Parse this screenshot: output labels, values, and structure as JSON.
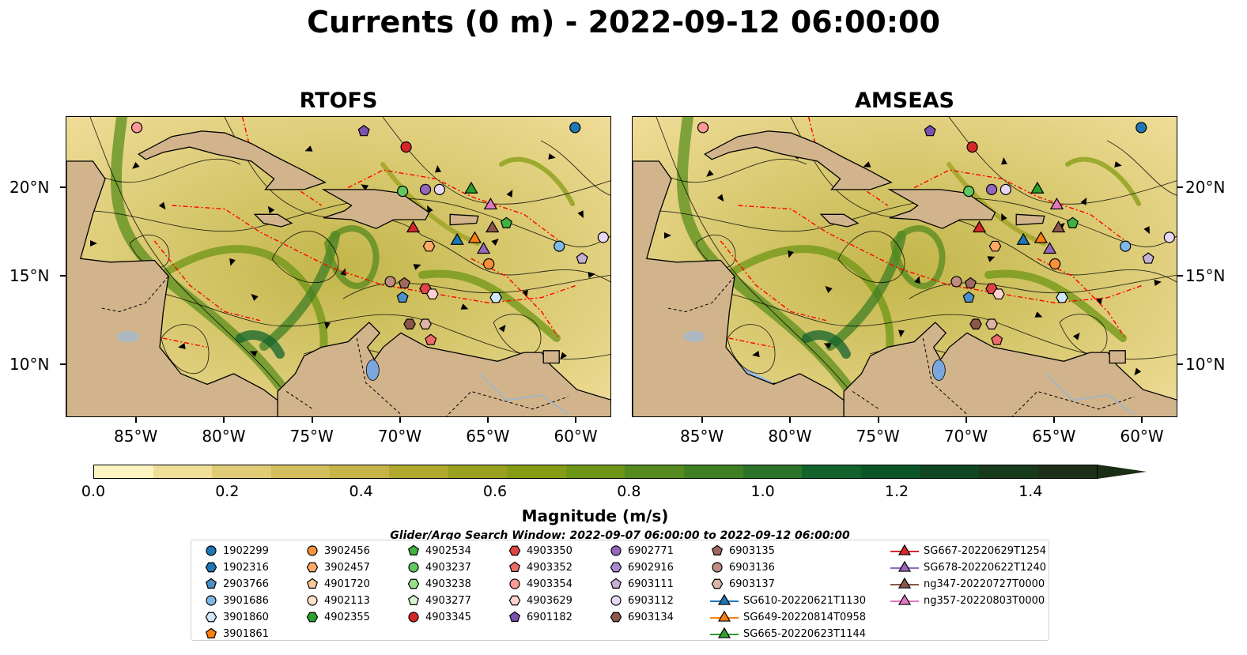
{
  "figure": {
    "title": "Currents (0 m) - 2022-09-12 06:00:00",
    "panels": [
      {
        "title": "RTOFS"
      },
      {
        "title": "AMSEAS"
      }
    ]
  },
  "axes": {
    "lon_ticks": [
      "85°W",
      "80°W",
      "75°W",
      "70°W",
      "65°W",
      "60°W"
    ],
    "lat_ticks": [
      "20°N",
      "15°N",
      "10°N"
    ],
    "lon_range": [
      -89,
      -58
    ],
    "lat_range": [
      7,
      24
    ]
  },
  "colorbar": {
    "label": "Magnitude (m/s)",
    "ticks": [
      "0.0",
      "0.2",
      "0.4",
      "0.6",
      "0.8",
      "1.0",
      "1.2",
      "1.4"
    ],
    "colors": [
      "#fcf5c0",
      "#efdf98",
      "#e0cc77",
      "#d3bd5c",
      "#c7b449",
      "#b1a92e",
      "#9aa01f",
      "#849c14",
      "#6d9516",
      "#558a1f",
      "#3f7f24",
      "#2b7329",
      "#12632c",
      "#0c5527",
      "#104722",
      "#183a1c",
      "#1d2f18"
    ]
  },
  "colors": {
    "land": "#d2b48c",
    "water_outside": "#9bbbe0",
    "background_field": "#efdc97",
    "eez": "#ff0000"
  },
  "search_window": "Glider/Argo Search Window: 2022-09-07 06:00:00 to 2022-09-12 06:00:00",
  "legend": [
    {
      "label": "1902299",
      "marker": "circle",
      "color": "#1f77b4"
    },
    {
      "label": "1902316",
      "marker": "hexagon",
      "color": "#1f77b4"
    },
    {
      "label": "2903766",
      "marker": "pentagon",
      "color": "#4a90c9"
    },
    {
      "label": "3901686",
      "marker": "circle",
      "color": "#7fb8e6"
    },
    {
      "label": "3901860",
      "marker": "hexagon",
      "color": "#d0e6f9"
    },
    {
      "label": "3901861",
      "marker": "pentagon",
      "color": "#ff7f0e"
    },
    {
      "label": "3902456",
      "marker": "circle",
      "color": "#f7913a"
    },
    {
      "label": "3902457",
      "marker": "hexagon",
      "color": "#ffaa66"
    },
    {
      "label": "4901720",
      "marker": "pentagon",
      "color": "#ffc896"
    },
    {
      "label": "4902113",
      "marker": "circle",
      "color": "#ffe3c8"
    },
    {
      "label": "4902355",
      "marker": "hexagon",
      "color": "#2ca02c"
    },
    {
      "label": "4902534",
      "marker": "pentagon",
      "color": "#3fb23f"
    },
    {
      "label": "4903237",
      "marker": "circle",
      "color": "#62c962"
    },
    {
      "label": "4903238",
      "marker": "hexagon",
      "color": "#98df8a"
    },
    {
      "label": "4903277",
      "marker": "pentagon",
      "color": "#d4f5cc"
    },
    {
      "label": "4903345",
      "marker": "circle",
      "color": "#d62728"
    },
    {
      "label": "4903350",
      "marker": "hexagon",
      "color": "#e04545"
    },
    {
      "label": "4903352",
      "marker": "pentagon",
      "color": "#ee6a6a"
    },
    {
      "label": "4903354",
      "marker": "circle",
      "color": "#ff9896"
    },
    {
      "label": "4903629",
      "marker": "hexagon",
      "color": "#ffd0cf"
    },
    {
      "label": "6901182",
      "marker": "pentagon",
      "color": "#7b52ad"
    },
    {
      "label": "6902771",
      "marker": "circle",
      "color": "#9467bd"
    },
    {
      "label": "6902916",
      "marker": "hexagon",
      "color": "#a98bd0"
    },
    {
      "label": "6903111",
      "marker": "pentagon",
      "color": "#c5b0d5"
    },
    {
      "label": "6903112",
      "marker": "circle",
      "color": "#e6d8f5"
    },
    {
      "label": "6903134",
      "marker": "hexagon",
      "color": "#8c564b"
    },
    {
      "label": "6903135",
      "marker": "pentagon",
      "color": "#a0695d"
    },
    {
      "label": "6903136",
      "marker": "circle",
      "color": "#c08c80"
    },
    {
      "label": "6903137",
      "marker": "hexagon",
      "color": "#ddb5a6"
    },
    {
      "label": "SG610-20220621T1130",
      "marker": "triangle",
      "color": "#1f77b4"
    },
    {
      "label": "SG649-20220814T0958",
      "marker": "triangle",
      "color": "#ff7f0e"
    },
    {
      "label": "SG665-20220623T1144",
      "marker": "triangle",
      "color": "#2ca02c"
    },
    {
      "label": "SG667-20220629T1254",
      "marker": "triangle",
      "color": "#d62728"
    },
    {
      "label": "SG678-20220622T1240",
      "marker": "triangle",
      "color": "#9467bd"
    },
    {
      "label": "ng347-20220727T0000",
      "marker": "triangle",
      "color": "#8c564b"
    },
    {
      "label": "ng357-20220803T0000",
      "marker": "triangle",
      "color": "#e377c2"
    }
  ],
  "floats_on_map": [
    {
      "id": "1902299",
      "lon": -60.1,
      "lat": 23.4
    },
    {
      "id": "4903354",
      "lon": -85.0,
      "lat": 23.4
    },
    {
      "id": "6901182",
      "lon": -72.1,
      "lat": 23.2
    },
    {
      "id": "4903345",
      "lon": -69.7,
      "lat": 22.3
    },
    {
      "id": "4903237",
      "lon": -69.9,
      "lat": 19.8
    },
    {
      "id": "6902771",
      "lon": -68.6,
      "lat": 19.9
    },
    {
      "id": "6903112",
      "lon": -67.8,
      "lat": 19.9
    },
    {
      "id": "SG665-20220623T1144",
      "lon": -66.0,
      "lat": 19.9
    },
    {
      "id": "ng357-20220803T0000",
      "lon": -64.9,
      "lat": 19.0
    },
    {
      "id": "4902534",
      "lon": -64.0,
      "lat": 18.0
    },
    {
      "id": "ng347-20220727T0000",
      "lon": -64.8,
      "lat": 17.7
    },
    {
      "id": "SG667-20220629T1254",
      "lon": -69.3,
      "lat": 17.7
    },
    {
      "id": "SG610-20220621T1130",
      "lon": -66.8,
      "lat": 17.0
    },
    {
      "id": "SG649-20220814T0958",
      "lon": -65.8,
      "lat": 17.1
    },
    {
      "id": "SG678-20220622T1240",
      "lon": -65.3,
      "lat": 16.5
    },
    {
      "id": "3902456",
      "lon": -65.0,
      "lat": 15.7
    },
    {
      "id": "3902457",
      "lon": -68.4,
      "lat": 16.7
    },
    {
      "id": "3901686",
      "lon": -61.0,
      "lat": 16.7
    },
    {
      "id": "6903112b",
      "lon": -58.5,
      "lat": 17.2
    },
    {
      "id": "6903111",
      "lon": -59.7,
      "lat": 16.0
    },
    {
      "id": "6903136",
      "lon": -70.6,
      "lat": 14.7
    },
    {
      "id": "6903135",
      "lon": -69.8,
      "lat": 14.6
    },
    {
      "id": "4903350",
      "lon": -68.6,
      "lat": 14.3
    },
    {
      "id": "4903629",
      "lon": -68.2,
      "lat": 14.0
    },
    {
      "id": "2903766",
      "lon": -69.9,
      "lat": 13.8
    },
    {
      "id": "3901860",
      "lon": -64.6,
      "lat": 13.8
    },
    {
      "id": "6903134",
      "lon": -69.5,
      "lat": 12.3
    },
    {
      "id": "6903137",
      "lon": -68.6,
      "lat": 12.3
    },
    {
      "id": "4903352",
      "lon": -68.3,
      "lat": 11.4
    }
  ]
}
